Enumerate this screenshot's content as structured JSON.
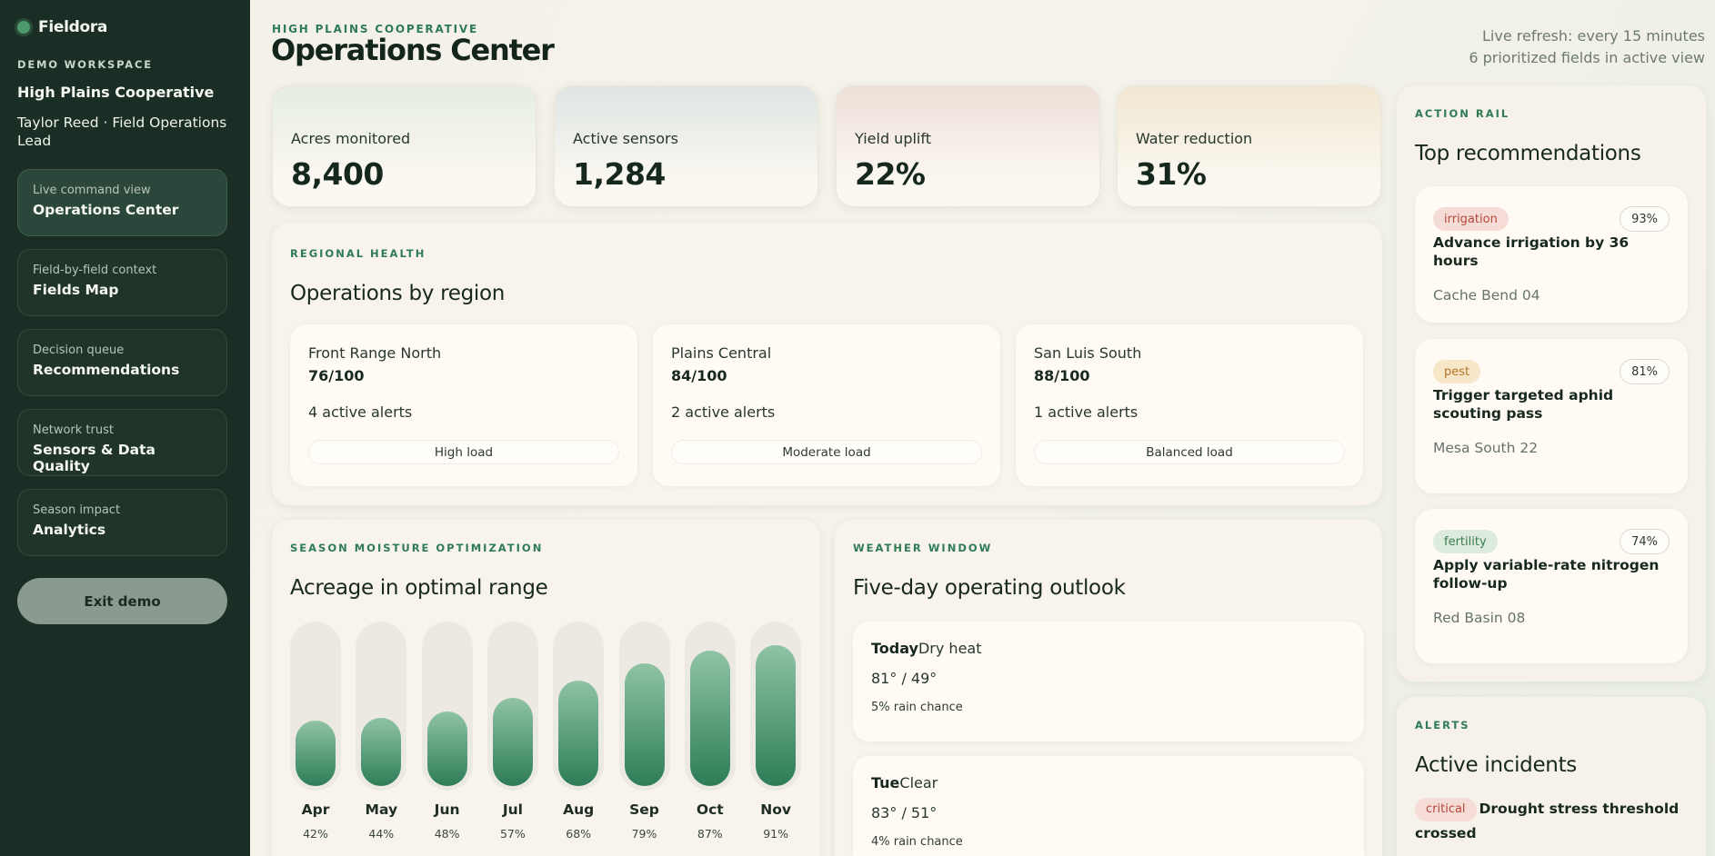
{
  "brand": {
    "name": "Fieldora"
  },
  "sidebar": {
    "workspace_label": "DEMO WORKSPACE",
    "org": "High Plains Cooperative",
    "user": "Taylor Reed · Field Operations Lead",
    "nav": [
      {
        "sub": "Live command view",
        "title": "Operations Center"
      },
      {
        "sub": "Field-by-field context",
        "title": "Fields Map"
      },
      {
        "sub": "Decision queue",
        "title": "Recommendations"
      },
      {
        "sub": "Network trust",
        "title": "Sensors & Data Quality"
      },
      {
        "sub": "Season impact",
        "title": "Analytics"
      }
    ],
    "exit_label": "Exit demo"
  },
  "header": {
    "kicker": "HIGH PLAINS COOPERATIVE",
    "title": "Operations Center",
    "refresh": "Live refresh: every 15 minutes",
    "fields_in_view": "6 prioritized fields in active view"
  },
  "stats": [
    {
      "label": "Acres monitored",
      "value": "8,400"
    },
    {
      "label": "Active sensors",
      "value": "1,284"
    },
    {
      "label": "Yield uplift",
      "value": "22%"
    },
    {
      "label": "Water reduction",
      "value": "31%"
    }
  ],
  "regional": {
    "kicker": "REGIONAL HEALTH",
    "title": "Operations by region",
    "regions": [
      {
        "name": "Front Range North",
        "score": "76/100",
        "alerts": "4 active alerts",
        "load": "High load"
      },
      {
        "name": "Plains Central",
        "score": "84/100",
        "alerts": "2 active alerts",
        "load": "Moderate load"
      },
      {
        "name": "San Luis South",
        "score": "88/100",
        "alerts": "1 active alerts",
        "load": "Balanced load"
      }
    ]
  },
  "moisture": {
    "kicker": "SEASON MOISTURE OPTIMIZATION",
    "title": "Acreage in optimal range",
    "months": [
      {
        "label": "Apr",
        "pct_label": "42%",
        "value": 42
      },
      {
        "label": "May",
        "pct_label": "44%",
        "value": 44
      },
      {
        "label": "Jun",
        "pct_label": "48%",
        "value": 48
      },
      {
        "label": "Jul",
        "pct_label": "57%",
        "value": 57
      },
      {
        "label": "Aug",
        "pct_label": "68%",
        "value": 68
      },
      {
        "label": "Sep",
        "pct_label": "79%",
        "value": 79
      },
      {
        "label": "Oct",
        "pct_label": "87%",
        "value": 87
      },
      {
        "label": "Nov",
        "pct_label": "91%",
        "value": 91
      }
    ]
  },
  "weather": {
    "kicker": "WEATHER WINDOW",
    "title": "Five-day operating outlook",
    "days": [
      {
        "day": "Today",
        "condition": "Dry heat",
        "temps": "81° / 49°",
        "rain": "5% rain chance"
      },
      {
        "day": "Tue",
        "condition": "Clear",
        "temps": "83° / 51°",
        "rain": "4% rain chance"
      }
    ]
  },
  "actions": {
    "kicker": "ACTION RAIL",
    "title": "Top recommendations",
    "items": [
      {
        "tag": "irrigation",
        "confidence": "93%",
        "title": "Advance irrigation by 36 hours",
        "field": "Cache Bend 04"
      },
      {
        "tag": "pest",
        "confidence": "81%",
        "title": "Trigger targeted aphid scouting pass",
        "field": "Mesa South 22"
      },
      {
        "tag": "fertility",
        "confidence": "74%",
        "title": "Apply variable-rate nitrogen follow-up",
        "field": "Red Basin 08"
      }
    ]
  },
  "alerts": {
    "kicker": "ALERTS",
    "title": "Active incidents",
    "items": [
      {
        "severity": "critical",
        "title": "Drought stress threshold crossed"
      }
    ]
  },
  "colors": {
    "sidebar_bg": "#1b2e25",
    "accent_green": "#2f7b55",
    "tag_irrigation": "#f6dcd6",
    "tag_pest": "#f7e6c8",
    "tag_fertility": "#dcebdc"
  }
}
